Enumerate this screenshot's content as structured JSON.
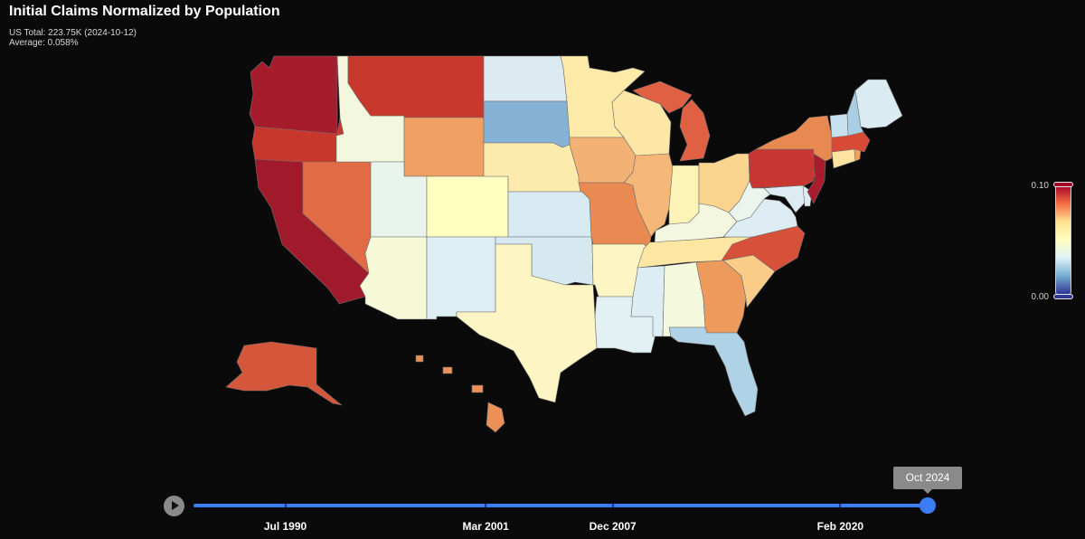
{
  "title": "Initial Claims Normalized by Population",
  "summary": {
    "us_total": "US Total: 223.75K (2024-10-12)",
    "average": "Average: 0.058%"
  },
  "legend": {
    "max_label": "0.10",
    "min_label": "0.00",
    "colors": [
      "#a50026",
      "#f46d43",
      "#fee090",
      "#ffffbf",
      "#e0f3f8",
      "#74add1",
      "#313695"
    ]
  },
  "timeline": {
    "current_label": "Oct 2024",
    "position": 1.0,
    "ticks": [
      {
        "label": "Jul 1990",
        "fraction": 0.125
      },
      {
        "label": "Mar 2001",
        "fraction": 0.398
      },
      {
        "label": "Dec 2007",
        "fraction": 0.571
      },
      {
        "label": "Feb 2020",
        "fraction": 0.881
      }
    ]
  },
  "states": [
    {
      "id": "WA",
      "color": "#a71c2c"
    },
    {
      "id": "OR",
      "color": "#c8372c"
    },
    {
      "id": "CA",
      "color": "#a11a2b"
    },
    {
      "id": "NV",
      "color": "#e06b45"
    },
    {
      "id": "ID",
      "color": "#f3f7dd"
    },
    {
      "id": "MT",
      "color": "#c9382c"
    },
    {
      "id": "WY",
      "color": "#f0a063"
    },
    {
      "id": "UT",
      "color": "#e9f5ec"
    },
    {
      "id": "AZ",
      "color": "#f6f9d8"
    },
    {
      "id": "CO",
      "color": "#ffffc2"
    },
    {
      "id": "NM",
      "color": "#deeff3"
    },
    {
      "id": "ND",
      "color": "#dcebf2"
    },
    {
      "id": "SD",
      "color": "#86b2d6"
    },
    {
      "id": "NE",
      "color": "#fdebae"
    },
    {
      "id": "KS",
      "color": "#d8eaf1"
    },
    {
      "id": "OK",
      "color": "#d6e9f1"
    },
    {
      "id": "TX",
      "color": "#fdf5c3"
    },
    {
      "id": "MN",
      "color": "#fdeaa8"
    },
    {
      "id": "IA",
      "color": "#f3b273"
    },
    {
      "id": "MO",
      "color": "#e88a52"
    },
    {
      "id": "AR",
      "color": "#fef5c4"
    },
    {
      "id": "LA",
      "color": "#e1f0f3"
    },
    {
      "id": "WI",
      "color": "#fde7a6"
    },
    {
      "id": "IL",
      "color": "#f5b778"
    },
    {
      "id": "MI",
      "color": "#e06044"
    },
    {
      "id": "IN",
      "color": "#fdf3b7"
    },
    {
      "id": "OH",
      "color": "#fbd590"
    },
    {
      "id": "KY",
      "color": "#f3f7e0"
    },
    {
      "id": "TN",
      "color": "#fde6a2"
    },
    {
      "id": "MS",
      "color": "#dcedf3"
    },
    {
      "id": "AL",
      "color": "#f4f8dc"
    },
    {
      "id": "GA",
      "color": "#ed9a5d"
    },
    {
      "id": "FL",
      "color": "#b0d2e6"
    },
    {
      "id": "SC",
      "color": "#fbcc88"
    },
    {
      "id": "NC",
      "color": "#d6503a"
    },
    {
      "id": "VA",
      "color": "#dcecf2"
    },
    {
      "id": "WV",
      "color": "#ebf5ee"
    },
    {
      "id": "MD",
      "color": "#dcecf2"
    },
    {
      "id": "DE",
      "color": "#dcecf2"
    },
    {
      "id": "PA",
      "color": "#c73630"
    },
    {
      "id": "NJ",
      "color": "#a91c2c"
    },
    {
      "id": "NY",
      "color": "#e98952"
    },
    {
      "id": "CT",
      "color": "#fde3a0"
    },
    {
      "id": "RI",
      "color": "#f0a063"
    },
    {
      "id": "MA",
      "color": "#d94a36"
    },
    {
      "id": "VT",
      "color": "#c7e1ee"
    },
    {
      "id": "NH",
      "color": "#a9cde3"
    },
    {
      "id": "ME",
      "color": "#dbebf2"
    },
    {
      "id": "AK",
      "color": "#d4573c"
    },
    {
      "id": "HI",
      "color": "#ec9058"
    }
  ]
}
